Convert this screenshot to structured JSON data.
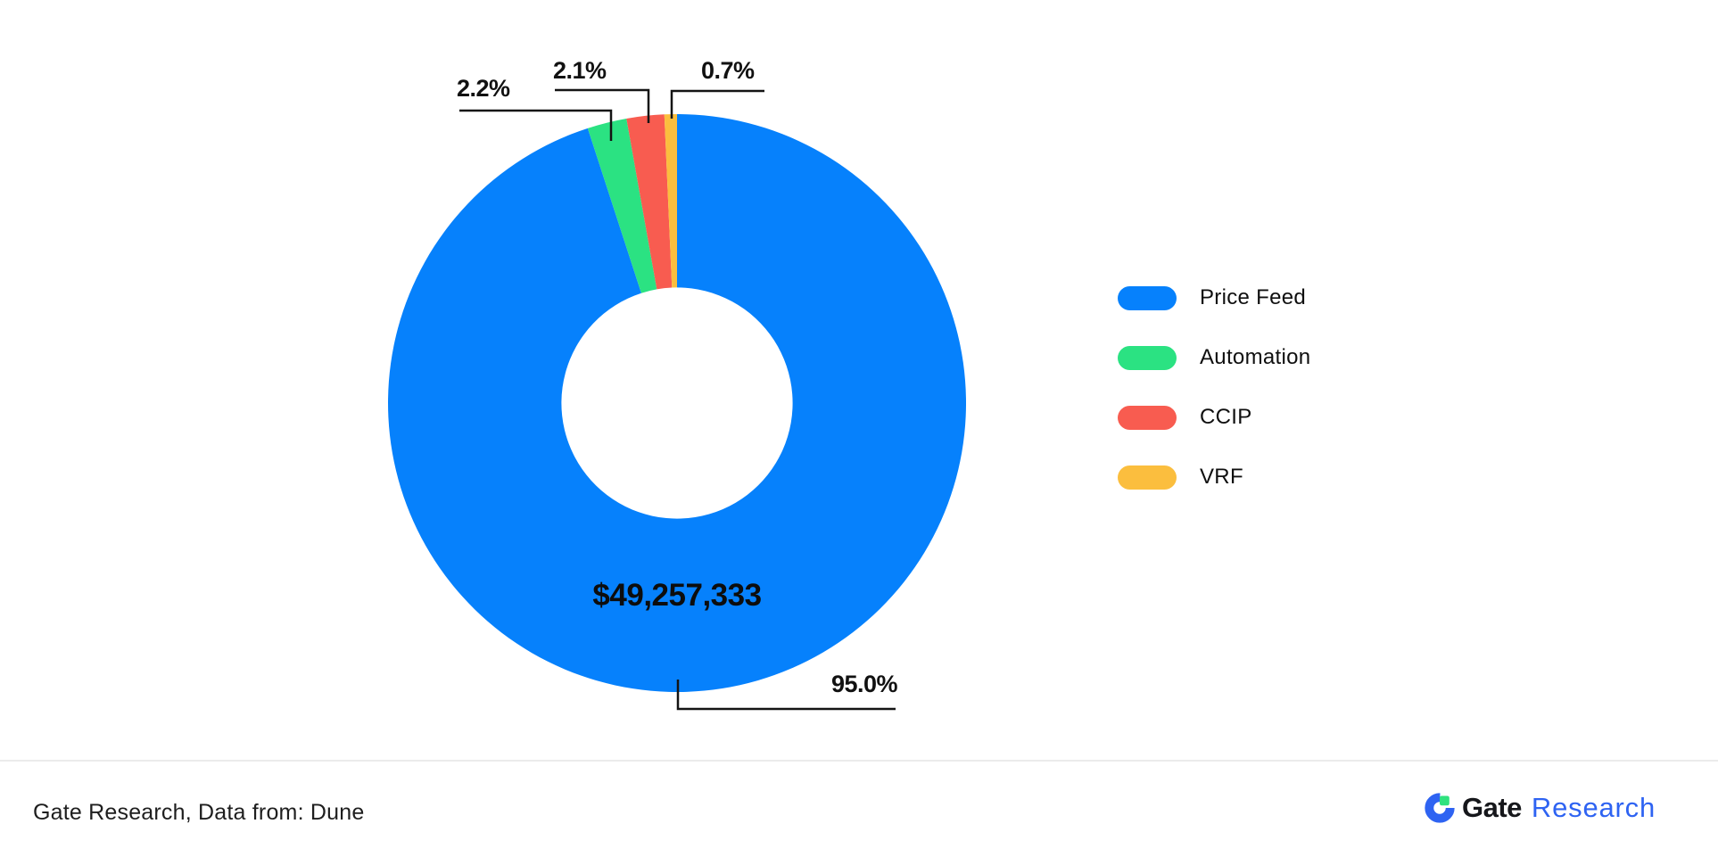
{
  "chart_data": {
    "type": "pie",
    "subtype": "donut",
    "title": "",
    "center_label": "$49,257,333",
    "start_angle_deg": 0,
    "direction": "clockwise",
    "donut_hole_ratio": 0.4,
    "legend_position": "right",
    "series": [
      {
        "name": "Price Feed",
        "value": 95.0,
        "label": "95.0%",
        "color": "#0681FC"
      },
      {
        "name": "Automation",
        "value": 2.2,
        "label": "2.2%",
        "color": "#2BE282"
      },
      {
        "name": "CCIP",
        "value": 2.1,
        "label": "2.1%",
        "color": "#F85C50"
      },
      {
        "name": "VRF",
        "value": 0.7,
        "label": "0.7%",
        "color": "#FBBE3E"
      }
    ]
  },
  "footer": {
    "source_text": "Gate Research, Data from: Dune",
    "brand_gate": "Gate",
    "brand_research": "Research"
  },
  "colors": {
    "background": "#ffffff",
    "callout_line": "#141414",
    "divider": "#ebebeb",
    "brand_blue": "#2E63F2",
    "brand_green": "#2FE27F",
    "brand_dark": "#16171B"
  }
}
